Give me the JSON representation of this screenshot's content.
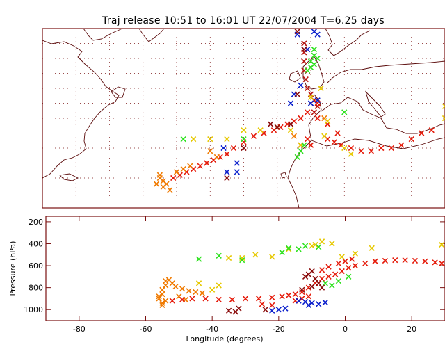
{
  "figure": {
    "title": "Traj release 10:51 to 16:01 UT 22/07/2004     T=6.25 days"
  },
  "colors": {
    "frame": "#7a1010",
    "coast": "#5a0a0a",
    "grid": "#7a1010",
    "series_blue": "#0b1fcc",
    "series_green": "#2ee21f",
    "series_yellow": "#e6c800",
    "series_orange": "#f07a00",
    "series_red": "#e51b0b",
    "series_darkred": "#8a0c0c",
    "series_brick": "#b8150f"
  },
  "chart_data": [
    {
      "type": "scatter",
      "panel": "map",
      "title": "Traj release 10:51 to 16:01 UT 22/07/2004     T=6.25 days",
      "xlabel": "",
      "ylabel": "",
      "xlim": [
        -90,
        30
      ],
      "ylim": [
        10,
        70
      ],
      "grid": true,
      "series": [
        {
          "color": "series_brick",
          "points": [
            [
              -12,
              65
            ],
            [
              -12,
              62
            ],
            [
              -12,
              59
            ],
            [
              -12,
              56
            ],
            [
              -11.5,
              53
            ],
            [
              -11,
              50
            ],
            [
              -10,
              48
            ],
            [
              -9,
              46
            ],
            [
              -8,
              44
            ],
            [
              -9,
              42
            ]
          ]
        },
        {
          "color": "series_red",
          "points": [
            [
              -8,
              45
            ],
            [
              -11,
              42
            ],
            [
              -13,
              40
            ],
            [
              -15,
              39
            ],
            [
              -17,
              38
            ],
            [
              -19,
              37
            ],
            [
              -21,
              36
            ],
            [
              -24,
              35
            ],
            [
              -27,
              34
            ],
            [
              -30,
              32
            ],
            [
              -33,
              30
            ],
            [
              -35,
              28
            ],
            [
              -37,
              27
            ],
            [
              -39,
              26
            ],
            [
              -41,
              25
            ],
            [
              -43,
              24
            ],
            [
              -45,
              23
            ],
            [
              -47,
              22
            ],
            [
              -49,
              21
            ],
            [
              -51,
              20
            ],
            [
              -5,
              33
            ],
            [
              -3,
              32
            ],
            [
              -1,
              31
            ],
            [
              2,
              30
            ],
            [
              5,
              29
            ],
            [
              8,
              29
            ],
            [
              11,
              30
            ],
            [
              14,
              30
            ],
            [
              17,
              31
            ],
            [
              20,
              33
            ],
            [
              23,
              35
            ],
            [
              26,
              36
            ],
            [
              -8,
              40
            ],
            [
              -5,
              38
            ],
            [
              -2,
              35
            ],
            [
              -11,
              33
            ],
            [
              -13,
              31
            ],
            [
              -10,
              31
            ]
          ]
        },
        {
          "color": "series_orange",
          "points": [
            [
              -53,
              18
            ],
            [
              -54,
              19
            ],
            [
              -55,
              20
            ],
            [
              -55,
              21
            ],
            [
              -54,
              17
            ],
            [
              -56,
              18
            ],
            [
              -52,
              16
            ],
            [
              -50,
              22
            ],
            [
              -48,
              23
            ],
            [
              -46,
              24
            ],
            [
              -40,
              29
            ],
            [
              -38,
              27
            ],
            [
              -15,
              34
            ],
            [
              -6,
              40
            ]
          ]
        },
        {
          "color": "series_yellow",
          "points": [
            [
              -45,
              33
            ],
            [
              -40,
              33
            ],
            [
              -35,
              33
            ],
            [
              -30,
              36
            ],
            [
              -25,
              36
            ],
            [
              -20,
              37
            ],
            [
              -16,
              36
            ],
            [
              -13,
              31
            ],
            [
              -6,
              34
            ],
            [
              -5,
              39
            ],
            [
              0,
              30
            ],
            [
              2,
              28
            ],
            [
              30,
              44
            ],
            [
              30,
              40
            ],
            [
              -10,
              47
            ],
            [
              -7,
              50
            ]
          ]
        },
        {
          "color": "series_green",
          "points": [
            [
              -9,
              63
            ],
            [
              -9,
              61
            ],
            [
              -10,
              59
            ],
            [
              -10,
              57
            ],
            [
              -9,
              58
            ],
            [
              -8,
              60
            ],
            [
              -11,
              56
            ],
            [
              -12,
              31
            ],
            [
              -13,
              29
            ],
            [
              -14,
              27
            ],
            [
              -48,
              33
            ],
            [
              -30,
              33
            ],
            [
              0,
              42
            ]
          ]
        },
        {
          "color": "series_blue",
          "points": [
            [
              -9,
              69
            ],
            [
              -8,
              68
            ],
            [
              -14,
              68
            ],
            [
              -11,
              63
            ],
            [
              -13,
              51
            ],
            [
              -15,
              48
            ],
            [
              -16,
              45
            ],
            [
              -32,
              25
            ],
            [
              -32,
              22
            ],
            [
              -35,
              22
            ],
            [
              -36,
              30
            ],
            [
              -10,
              45
            ],
            [
              -8,
              46
            ]
          ]
        },
        {
          "color": "series_darkred",
          "points": [
            [
              -14,
              69
            ],
            [
              -12,
              63
            ],
            [
              -14,
              48
            ],
            [
              -20,
              37
            ],
            [
              -22,
              38
            ],
            [
              -35,
              20
            ],
            [
              -30,
              30
            ],
            [
              -16,
              38
            ]
          ]
        }
      ]
    },
    {
      "type": "scatter",
      "panel": "pressure",
      "title": "",
      "xlabel": "Longitude  (degrees)",
      "ylabel": "Pressure  (hPa)",
      "xlim": [
        -90,
        30
      ],
      "ylim": [
        1100,
        150
      ],
      "x_ticks": [
        -80,
        -60,
        -40,
        -20,
        0,
        20
      ],
      "y_ticks": [
        200,
        400,
        600,
        800,
        1000
      ],
      "grid": false,
      "series": [
        {
          "color": "series_orange",
          "points": [
            [
              -56,
              900
            ],
            [
              -55,
              860
            ],
            [
              -55,
              820
            ],
            [
              -54,
              780
            ],
            [
              -54,
              740
            ],
            [
              -53,
              730
            ],
            [
              -52,
              760
            ],
            [
              -51,
              790
            ],
            [
              -49,
              810
            ],
            [
              -47,
              830
            ],
            [
              -45,
              840
            ],
            [
              -43,
              850
            ],
            [
              -55,
              960
            ],
            [
              -55,
              940
            ],
            [
              -56,
              880
            ],
            [
              -54,
              920
            ],
            [
              -50,
              880
            ],
            [
              -48,
              910
            ]
          ]
        },
        {
          "color": "series_red",
          "points": [
            [
              -52,
              920
            ],
            [
              -49,
              910
            ],
            [
              -46,
              900
            ],
            [
              -42,
              900
            ],
            [
              -38,
              910
            ],
            [
              -34,
              910
            ],
            [
              -30,
              900
            ],
            [
              -26,
              900
            ],
            [
              -22,
              890
            ],
            [
              -19,
              880
            ],
            [
              -17,
              870
            ],
            [
              -15,
              860
            ],
            [
              -13,
              840
            ],
            [
              -11,
              800
            ],
            [
              -9,
              760
            ],
            [
              -7,
              720
            ],
            [
              -5,
              700
            ],
            [
              -3,
              680
            ],
            [
              -1,
              650
            ],
            [
              1,
              620
            ],
            [
              3,
              600
            ],
            [
              6,
              580
            ],
            [
              9,
              560
            ],
            [
              12,
              555
            ],
            [
              15,
              550
            ],
            [
              18,
              550
            ],
            [
              21,
              555
            ],
            [
              24,
              560
            ],
            [
              27,
              570
            ],
            [
              29,
              580
            ],
            [
              -7,
              640
            ],
            [
              -5,
              610
            ],
            [
              -2,
              580
            ],
            [
              0,
              560
            ],
            [
              2,
              540
            ],
            [
              -15,
              920
            ],
            [
              -13,
              900
            ],
            [
              -11,
              880
            ],
            [
              -22,
              960
            ],
            [
              -25,
              950
            ]
          ]
        },
        {
          "color": "series_yellow",
          "points": [
            [
              -35,
              530
            ],
            [
              -31,
              530
            ],
            [
              -27,
              500
            ],
            [
              -22,
              520
            ],
            [
              -17,
              450
            ],
            [
              -10,
              420
            ],
            [
              -9,
              410
            ],
            [
              -7,
              380
            ],
            [
              -4,
              400
            ],
            [
              -1,
              520
            ],
            [
              3,
              490
            ],
            [
              8,
              440
            ],
            [
              29,
              410
            ],
            [
              -44,
              760
            ],
            [
              -40,
              820
            ],
            [
              -38,
              780
            ]
          ]
        },
        {
          "color": "series_green",
          "points": [
            [
              -44,
              540
            ],
            [
              -38,
              510
            ],
            [
              -31,
              550
            ],
            [
              -19,
              480
            ],
            [
              -17,
              440
            ],
            [
              -14,
              450
            ],
            [
              -12,
              420
            ],
            [
              -8,
              430
            ],
            [
              -6,
              760
            ],
            [
              -4,
              780
            ],
            [
              1,
              700
            ],
            [
              -2,
              740
            ]
          ]
        },
        {
          "color": "series_blue",
          "points": [
            [
              -22,
              1010
            ],
            [
              -20,
              1000
            ],
            [
              -18,
              990
            ],
            [
              -12,
              930
            ],
            [
              -10,
              940
            ],
            [
              -8,
              950
            ],
            [
              -6,
              935
            ],
            [
              -14,
              920
            ],
            [
              -11,
              960
            ]
          ]
        },
        {
          "color": "series_darkred",
          "points": [
            [
              -35,
              1010
            ],
            [
              -33,
              1020
            ],
            [
              -32,
              990
            ],
            [
              -24,
              1000
            ],
            [
              -12,
              700
            ],
            [
              -11,
              680
            ],
            [
              -9,
              720
            ],
            [
              -8,
              760
            ],
            [
              -10,
              790
            ],
            [
              -13,
              820
            ],
            [
              -7,
              800
            ],
            [
              -10,
              650
            ]
          ]
        }
      ]
    }
  ]
}
